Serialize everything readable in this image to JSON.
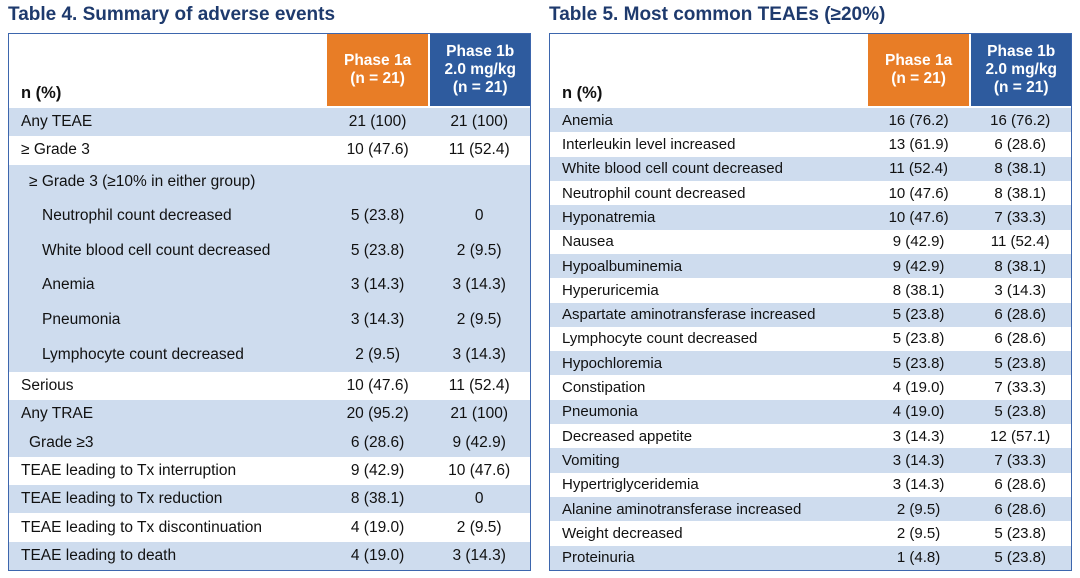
{
  "colors": {
    "accent-orange": "#E87D26",
    "accent-blue": "#2E5B9E",
    "title-navy": "#1E3A6D",
    "stripe-blue": "#CEDCEE",
    "border-blue": "#3D66AD"
  },
  "tables": [
    {
      "title": "Table 4. Summary of adverse events",
      "row_header_label": "n (%)",
      "columns": [
        {
          "name": "Phase 1a",
          "lines": [
            "Phase 1a",
            "(n = 21)"
          ]
        },
        {
          "name": "Phase 1b",
          "lines": [
            "Phase 1b",
            "2.0 mg/kg",
            "(n = 21)"
          ]
        }
      ],
      "rows": [
        {
          "label": "Any TEAE",
          "phase1a": "21 (100)",
          "phase1b": "21 (100)",
          "indent": 0
        },
        {
          "label": "≥ Grade 3",
          "phase1a": "10 (47.6)",
          "phase1b": "11 (52.4)",
          "indent": 0
        },
        {
          "label": "≥ Grade 3 (≥10% in either group)",
          "phase1a": "",
          "phase1b": "",
          "indent": 1
        },
        {
          "label": "Neutrophil count decreased",
          "phase1a": "5 (23.8)",
          "phase1b": "0",
          "indent": 2
        },
        {
          "label": "White blood cell count decreased",
          "phase1a": "5 (23.8)",
          "phase1b": "2 (9.5)",
          "indent": 2
        },
        {
          "label": "Anemia",
          "phase1a": "3 (14.3)",
          "phase1b": "3 (14.3)",
          "indent": 2
        },
        {
          "label": "Pneumonia",
          "phase1a": "3 (14.3)",
          "phase1b": "2 (9.5)",
          "indent": 2
        },
        {
          "label": "Lymphocyte count decreased",
          "phase1a": "2 (9.5)",
          "phase1b": "3 (14.3)",
          "indent": 2
        },
        {
          "label": "Serious",
          "phase1a": "10 (47.6)",
          "phase1b": "11 (52.4)",
          "indent": 0
        },
        {
          "label": "Any TRAE",
          "phase1a": "20 (95.2)",
          "phase1b": "21 (100)",
          "indent": 0
        },
        {
          "label": "Grade ≥3",
          "phase1a": "6 (28.6)",
          "phase1b": "9 (42.9)",
          "indent": 1
        },
        {
          "label": "TEAE leading to Tx interruption",
          "phase1a": "9 (42.9)",
          "phase1b": "10 (47.6)",
          "indent": 0
        },
        {
          "label": "TEAE leading to Tx reduction",
          "phase1a": "8 (38.1)",
          "phase1b": "0",
          "indent": 0
        },
        {
          "label": "TEAE leading to Tx discontinuation",
          "phase1a": "4 (19.0)",
          "phase1b": "2 (9.5)",
          "indent": 0
        },
        {
          "label": "TEAE leading to death",
          "phase1a": "4 (19.0)",
          "phase1b": "3 (14.3)",
          "indent": 0
        }
      ]
    },
    {
      "title": "Table 5. Most common TEAEs (≥20%)",
      "row_header_label": "n (%)",
      "columns": [
        {
          "name": "Phase 1a",
          "lines": [
            "Phase 1a",
            "(n = 21)"
          ]
        },
        {
          "name": "Phase 1b",
          "lines": [
            "Phase 1b",
            "2.0 mg/kg",
            "(n = 21)"
          ]
        }
      ],
      "rows": [
        {
          "label": "Anemia",
          "phase1a": "16 (76.2)",
          "phase1b": "16 (76.2)",
          "indent": 0
        },
        {
          "label": "Interleukin level increased",
          "phase1a": "13 (61.9)",
          "phase1b": "6 (28.6)",
          "indent": 0
        },
        {
          "label": "White blood cell count decreased",
          "phase1a": "11 (52.4)",
          "phase1b": "8 (38.1)",
          "indent": 0
        },
        {
          "label": "Neutrophil count decreased",
          "phase1a": "10 (47.6)",
          "phase1b": "8 (38.1)",
          "indent": 0
        },
        {
          "label": "Hyponatremia",
          "phase1a": "10 (47.6)",
          "phase1b": "7 (33.3)",
          "indent": 0
        },
        {
          "label": "Nausea",
          "phase1a": "9 (42.9)",
          "phase1b": "11 (52.4)",
          "indent": 0
        },
        {
          "label": "Hypoalbuminemia",
          "phase1a": "9 (42.9)",
          "phase1b": "8 (38.1)",
          "indent": 0
        },
        {
          "label": "Hyperuricemia",
          "phase1a": "8 (38.1)",
          "phase1b": "3 (14.3)",
          "indent": 0
        },
        {
          "label": "Aspartate aminotransferase increased",
          "phase1a": "5 (23.8)",
          "phase1b": "6 (28.6)",
          "indent": 0
        },
        {
          "label": "Lymphocyte count decreased",
          "phase1a": "5 (23.8)",
          "phase1b": "6 (28.6)",
          "indent": 0
        },
        {
          "label": "Hypochloremia",
          "phase1a": "5 (23.8)",
          "phase1b": "5 (23.8)",
          "indent": 0
        },
        {
          "label": "Constipation",
          "phase1a": "4 (19.0)",
          "phase1b": "7 (33.3)",
          "indent": 0
        },
        {
          "label": "Pneumonia",
          "phase1a": "4 (19.0)",
          "phase1b": "5 (23.8)",
          "indent": 0
        },
        {
          "label": "Decreased appetite",
          "phase1a": "3 (14.3)",
          "phase1b": "12 (57.1)",
          "indent": 0
        },
        {
          "label": "Vomiting",
          "phase1a": "3 (14.3)",
          "phase1b": "7 (33.3)",
          "indent": 0
        },
        {
          "label": "Hypertriglyceridemia",
          "phase1a": "3 (14.3)",
          "phase1b": "6 (28.6)",
          "indent": 0
        },
        {
          "label": "Alanine aminotransferase increased",
          "phase1a": "2 (9.5)",
          "phase1b": "6 (28.6)",
          "indent": 0
        },
        {
          "label": "Weight decreased",
          "phase1a": "2 (9.5)",
          "phase1b": "5 (23.8)",
          "indent": 0
        },
        {
          "label": "Proteinuria",
          "phase1a": "1 (4.8)",
          "phase1b": "5 (23.8)",
          "indent": 0
        }
      ]
    }
  ]
}
